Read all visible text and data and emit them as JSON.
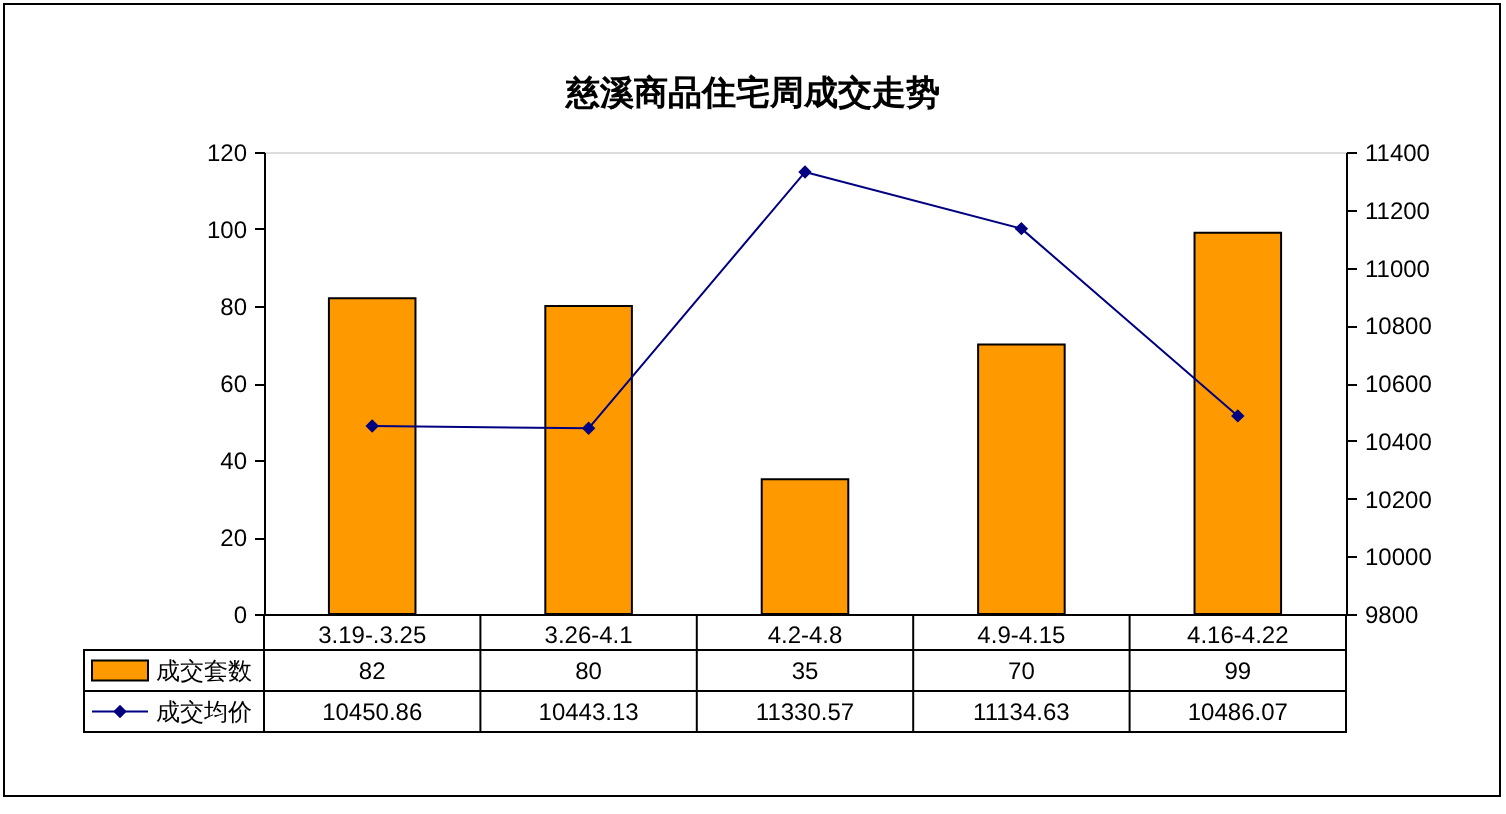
{
  "chart_data": {
    "type": "bar",
    "title": "慈溪商品住宅周成交走势",
    "categories": [
      "3.19-.3.25",
      "3.26-4.1",
      "4.2-4.8",
      "4.9-4.15",
      "4.16-4.22"
    ],
    "series": [
      {
        "name": "成交套数",
        "color": "#ff9900",
        "values": [
          82,
          80,
          35,
          70,
          99
        ]
      },
      {
        "name": "成交均价",
        "type": "line",
        "axis": "y2",
        "color": "#000080",
        "values": [
          10450.86,
          10443.13,
          11330.57,
          11134.63,
          10486.07
        ]
      }
    ],
    "ylim": [
      0,
      120
    ],
    "yticks": [
      0,
      20,
      40,
      60,
      80,
      100,
      120
    ],
    "y2lim": [
      9800,
      11400
    ],
    "y2ticks": [
      9800,
      10000,
      10200,
      10400,
      10600,
      10800,
      11000,
      11200,
      11400
    ],
    "marker": "diamond",
    "legend": "bottom",
    "data_labels": true
  }
}
